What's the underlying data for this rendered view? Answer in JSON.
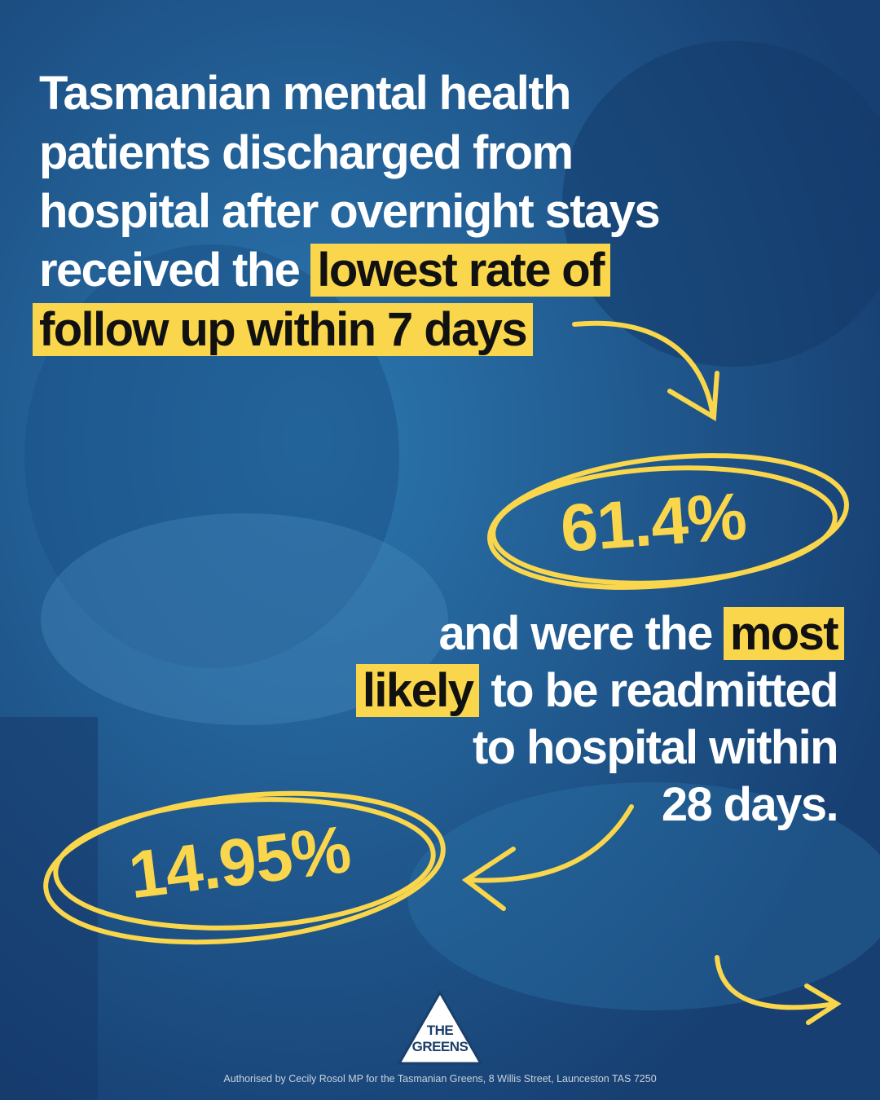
{
  "headline": {
    "lines": [
      "Tasmanian mental health",
      "patients discharged from",
      "hospital after overnight stays"
    ],
    "lead": "received the",
    "highlight": [
      "lowest rate of",
      "follow up within 7 days"
    ]
  },
  "stat_follow_up": "61.4%",
  "second": {
    "lead": "and were the",
    "highlight": [
      "most",
      "likely"
    ],
    "rest": "to be readmitted",
    "lines": [
      "to hospital within",
      "28 days."
    ]
  },
  "stat_readmitted": "14.95%",
  "logo": [
    "THE",
    "GREENS"
  ],
  "footer": "Authorised by Cecily Rosol MP for the Tasmanian Greens, 8 Willis Street, Launceston TAS 7250"
}
